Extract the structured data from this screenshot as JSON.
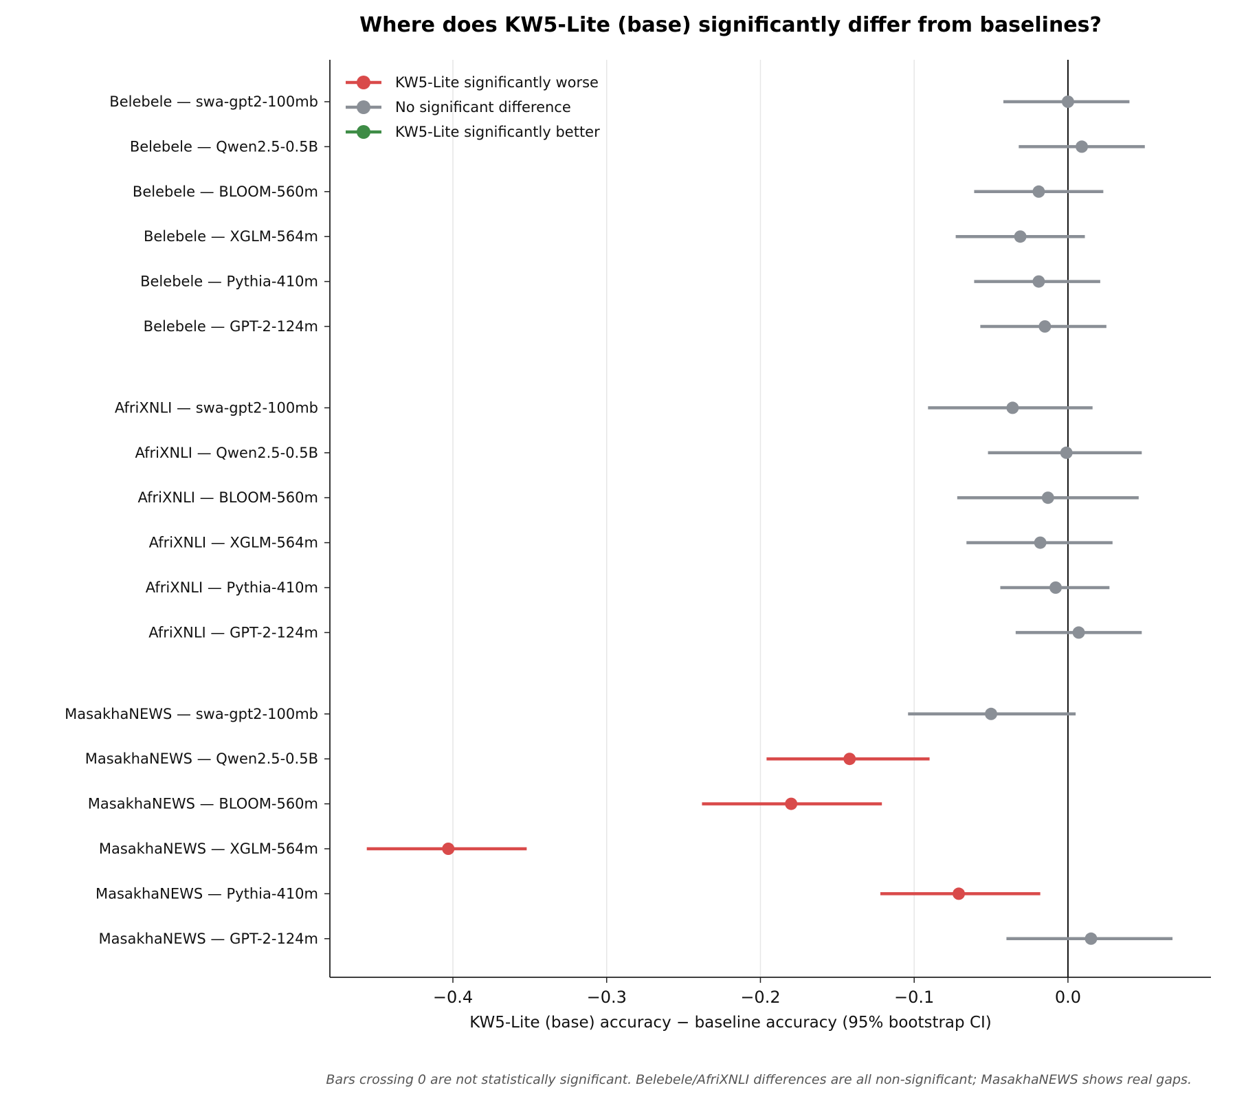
{
  "chart_data": {
    "type": "forest-plot",
    "title": "Where does KW5-Lite (base) significantly differ from baselines?",
    "xlabel": "KW5-Lite (base) accuracy − baseline accuracy  (95% bootstrap CI)",
    "xlim": [
      -0.48,
      0.093
    ],
    "xticks": [
      -0.4,
      -0.3,
      -0.2,
      -0.1,
      0.0
    ],
    "xtick_labels": [
      "−0.4",
      "−0.3",
      "−0.2",
      "−0.1",
      "0.0"
    ],
    "grid": "vertical",
    "reference_line": 0.0,
    "legend": {
      "placement": "top-left",
      "entries": [
        {
          "label": "KW5-Lite significantly worse",
          "color": "#d94a4a"
        },
        {
          "label": "No significant difference",
          "color": "#8a8f96"
        },
        {
          "label": "KW5-Lite significantly better",
          "color": "#3e8c46"
        }
      ]
    },
    "colors": {
      "worse": "#d94a4a",
      "ns": "#8a8f96",
      "better": "#3e8c46"
    },
    "groups": [
      {
        "name": "Belebele",
        "rows": [
          {
            "label": "Belebele — swa-gpt2-100mb",
            "est": 0.0,
            "lo": -0.042,
            "hi": 0.04,
            "sig": "ns"
          },
          {
            "label": "Belebele — Qwen2.5-0.5B",
            "est": 0.009,
            "lo": -0.032,
            "hi": 0.05,
            "sig": "ns"
          },
          {
            "label": "Belebele — BLOOM-560m",
            "est": -0.019,
            "lo": -0.061,
            "hi": 0.023,
            "sig": "ns"
          },
          {
            "label": "Belebele — XGLM-564m",
            "est": -0.031,
            "lo": -0.073,
            "hi": 0.011,
            "sig": "ns"
          },
          {
            "label": "Belebele — Pythia-410m",
            "est": -0.019,
            "lo": -0.061,
            "hi": 0.021,
            "sig": "ns"
          },
          {
            "label": "Belebele — GPT-2-124m",
            "est": -0.015,
            "lo": -0.057,
            "hi": 0.025,
            "sig": "ns"
          }
        ]
      },
      {
        "name": "AfriXNLI",
        "rows": [
          {
            "label": "AfriXNLI — swa-gpt2-100mb",
            "est": -0.036,
            "lo": -0.091,
            "hi": 0.016,
            "sig": "ns"
          },
          {
            "label": "AfriXNLI — Qwen2.5-0.5B",
            "est": -0.001,
            "lo": -0.052,
            "hi": 0.048,
            "sig": "ns"
          },
          {
            "label": "AfriXNLI — BLOOM-560m",
            "est": -0.013,
            "lo": -0.072,
            "hi": 0.046,
            "sig": "ns"
          },
          {
            "label": "AfriXNLI — XGLM-564m",
            "est": -0.018,
            "lo": -0.066,
            "hi": 0.029,
            "sig": "ns"
          },
          {
            "label": "AfriXNLI — Pythia-410m",
            "est": -0.008,
            "lo": -0.044,
            "hi": 0.027,
            "sig": "ns"
          },
          {
            "label": "AfriXNLI — GPT-2-124m",
            "est": 0.007,
            "lo": -0.034,
            "hi": 0.048,
            "sig": "ns"
          }
        ]
      },
      {
        "name": "MasakhaNEWS",
        "rows": [
          {
            "label": "MasakhaNEWS — swa-gpt2-100mb",
            "est": -0.05,
            "lo": -0.104,
            "hi": 0.005,
            "sig": "ns"
          },
          {
            "label": "MasakhaNEWS — Qwen2.5-0.5B",
            "est": -0.142,
            "lo": -0.196,
            "hi": -0.09,
            "sig": "worse"
          },
          {
            "label": "MasakhaNEWS — BLOOM-560m",
            "est": -0.18,
            "lo": -0.238,
            "hi": -0.121,
            "sig": "worse"
          },
          {
            "label": "MasakhaNEWS — XGLM-564m",
            "est": -0.403,
            "lo": -0.456,
            "hi": -0.352,
            "sig": "worse"
          },
          {
            "label": "MasakhaNEWS — Pythia-410m",
            "est": -0.071,
            "lo": -0.122,
            "hi": -0.018,
            "sig": "worse"
          },
          {
            "label": "MasakhaNEWS — GPT-2-124m",
            "est": 0.015,
            "lo": -0.04,
            "hi": 0.068,
            "sig": "ns"
          }
        ]
      }
    ]
  },
  "footnote": "Bars crossing 0 are not statistically significant. Belebele/AfriXNLI differences are all non-significant; MasakhaNEWS shows real gaps."
}
